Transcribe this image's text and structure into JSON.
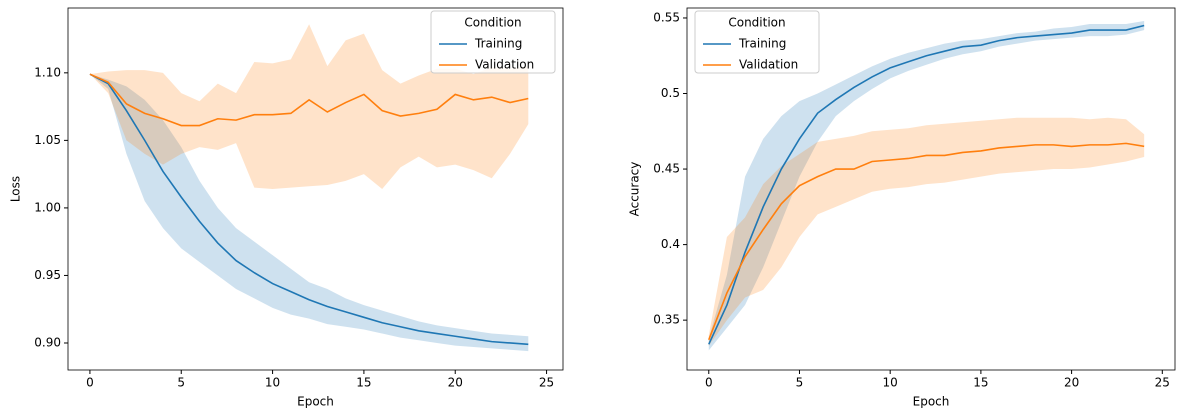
{
  "chart_data": [
    {
      "type": "line",
      "xlabel": "Epoch",
      "ylabel": "Loss",
      "legend_title": "Condition",
      "legend": "upper right",
      "x": [
        0,
        1,
        2,
        3,
        4,
        5,
        6,
        7,
        8,
        9,
        10,
        11,
        12,
        13,
        14,
        15,
        16,
        17,
        18,
        19,
        20,
        21,
        22,
        23,
        24
      ],
      "xlim": [
        -1.2,
        25.9
      ],
      "xticks": [
        0,
        5,
        10,
        15,
        20,
        25
      ],
      "ylim": [
        0.88,
        1.148
      ],
      "yticks": [
        {
          "value": 0.9,
          "label": "0.90"
        },
        {
          "value": 0.95,
          "label": "0.95"
        },
        {
          "value": 1.0,
          "label": "1.00"
        },
        {
          "value": 1.05,
          "label": "1.05"
        },
        {
          "value": 1.1,
          "label": "1.10"
        }
      ],
      "series": [
        {
          "name": "Training",
          "color": "#1f77b4",
          "values": [
            1.099,
            1.092,
            1.072,
            1.05,
            1.027,
            1.008,
            0.99,
            0.974,
            0.961,
            0.952,
            0.944,
            0.938,
            0.932,
            0.927,
            0.923,
            0.919,
            0.915,
            0.912,
            0.909,
            0.907,
            0.905,
            0.903,
            0.901,
            0.9,
            0.899
          ],
          "upper": [
            1.099,
            1.095,
            1.09,
            1.08,
            1.065,
            1.045,
            1.02,
            1.0,
            0.985,
            0.975,
            0.965,
            0.955,
            0.945,
            0.94,
            0.933,
            0.928,
            0.924,
            0.92,
            0.916,
            0.913,
            0.911,
            0.909,
            0.907,
            0.906,
            0.905
          ],
          "lower": [
            1.099,
            1.088,
            1.04,
            1.005,
            0.985,
            0.97,
            0.96,
            0.95,
            0.94,
            0.933,
            0.926,
            0.921,
            0.918,
            0.914,
            0.912,
            0.91,
            0.907,
            0.904,
            0.902,
            0.9,
            0.898,
            0.897,
            0.896,
            0.895,
            0.894
          ]
        },
        {
          "name": "Validation",
          "color": "#ff7f0e",
          "values": [
            1.099,
            1.093,
            1.077,
            1.07,
            1.066,
            1.061,
            1.061,
            1.066,
            1.065,
            1.069,
            1.069,
            1.07,
            1.08,
            1.071,
            1.078,
            1.084,
            1.072,
            1.068,
            1.07,
            1.073,
            1.084,
            1.08,
            1.082,
            1.078,
            1.081
          ],
          "upper": [
            1.099,
            1.101,
            1.102,
            1.102,
            1.1,
            1.085,
            1.079,
            1.092,
            1.085,
            1.108,
            1.107,
            1.11,
            1.136,
            1.105,
            1.124,
            1.129,
            1.102,
            1.092,
            1.098,
            1.103,
            1.103,
            1.099,
            1.104,
            1.103,
            1.105
          ],
          "lower": [
            1.099,
            1.085,
            1.05,
            1.04,
            1.032,
            1.04,
            1.045,
            1.043,
            1.048,
            1.015,
            1.014,
            1.015,
            1.016,
            1.017,
            1.02,
            1.025,
            1.014,
            1.03,
            1.038,
            1.03,
            1.032,
            1.028,
            1.022,
            1.04,
            1.062
          ]
        }
      ]
    },
    {
      "type": "line",
      "xlabel": "Epoch",
      "ylabel": "Accuracy",
      "legend_title": "Condition",
      "legend": "upper left",
      "x": [
        0,
        1,
        2,
        3,
        4,
        5,
        6,
        7,
        8,
        9,
        10,
        11,
        12,
        13,
        14,
        15,
        16,
        17,
        18,
        19,
        20,
        21,
        22,
        23,
        24
      ],
      "xlim": [
        -1.2,
        25.7
      ],
      "xticks": [
        0,
        5,
        10,
        15,
        20,
        25
      ],
      "ylim": [
        0.317,
        0.5566
      ],
      "yticks": [
        0.35,
        0.4,
        0.45,
        0.5,
        0.55
      ],
      "series": [
        {
          "name": "Training",
          "color": "#1f77b4",
          "values": [
            0.334,
            0.36,
            0.395,
            0.425,
            0.45,
            0.47,
            0.487,
            0.496,
            0.504,
            0.511,
            0.517,
            0.521,
            0.525,
            0.528,
            0.531,
            0.532,
            0.535,
            0.537,
            0.538,
            0.539,
            0.54,
            0.542,
            0.542,
            0.542,
            0.545
          ],
          "upper": [
            0.338,
            0.38,
            0.445,
            0.47,
            0.485,
            0.495,
            0.5,
            0.506,
            0.512,
            0.518,
            0.523,
            0.527,
            0.53,
            0.533,
            0.535,
            0.536,
            0.538,
            0.54,
            0.541,
            0.543,
            0.544,
            0.546,
            0.546,
            0.546,
            0.548
          ],
          "lower": [
            0.33,
            0.345,
            0.36,
            0.385,
            0.415,
            0.445,
            0.468,
            0.485,
            0.495,
            0.503,
            0.51,
            0.515,
            0.519,
            0.523,
            0.526,
            0.528,
            0.531,
            0.533,
            0.535,
            0.536,
            0.537,
            0.538,
            0.538,
            0.539,
            0.542
          ]
        },
        {
          "name": "Validation",
          "color": "#ff7f0e",
          "values": [
            0.337,
            0.368,
            0.392,
            0.41,
            0.427,
            0.439,
            0.445,
            0.45,
            0.45,
            0.455,
            0.456,
            0.457,
            0.459,
            0.459,
            0.461,
            0.462,
            0.464,
            0.465,
            0.466,
            0.466,
            0.465,
            0.466,
            0.466,
            0.467,
            0.465
          ],
          "upper": [
            0.34,
            0.405,
            0.418,
            0.44,
            0.452,
            0.46,
            0.468,
            0.47,
            0.472,
            0.475,
            0.476,
            0.477,
            0.479,
            0.48,
            0.481,
            0.482,
            0.483,
            0.484,
            0.484,
            0.484,
            0.484,
            0.483,
            0.484,
            0.483,
            0.473
          ],
          "lower": [
            0.333,
            0.35,
            0.365,
            0.37,
            0.385,
            0.405,
            0.42,
            0.425,
            0.43,
            0.435,
            0.437,
            0.438,
            0.44,
            0.441,
            0.443,
            0.445,
            0.447,
            0.448,
            0.449,
            0.45,
            0.45,
            0.451,
            0.453,
            0.455,
            0.458
          ]
        }
      ]
    }
  ]
}
